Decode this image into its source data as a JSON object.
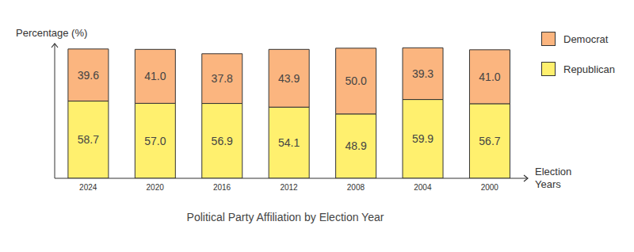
{
  "chart_data": {
    "type": "bar",
    "title": "Political Party Affiliation by Election Year",
    "x_label": "Election Years",
    "y_label": "Percentage (%)",
    "categories": [
      "2024",
      "2020",
      "2016",
      "2012",
      "2008",
      "2004",
      "2000"
    ],
    "series": [
      {
        "name": "Republican",
        "color": "#FFF06E",
        "values": [
          58.7,
          57.0,
          56.9,
          54.1,
          48.9,
          59.9,
          56.7
        ],
        "value_labels": [
          "58.7",
          "57.0",
          "56.9",
          "54.1",
          "48.9",
          "59.9",
          "56.7"
        ]
      },
      {
        "name": "Democrat",
        "color": "#FBB57F",
        "values": [
          39.6,
          41.0,
          37.8,
          43.9,
          50.0,
          39.3,
          41.0
        ],
        "value_labels": [
          "39.6",
          "41.0",
          "37.8",
          "43.9",
          "50.0",
          "39.3",
          "41.0"
        ]
      }
    ],
    "ylim": [
      0,
      100
    ],
    "stacked": true,
    "data_labels": true,
    "tick_labels": "x",
    "legend": "upper right",
    "grid": false
  }
}
